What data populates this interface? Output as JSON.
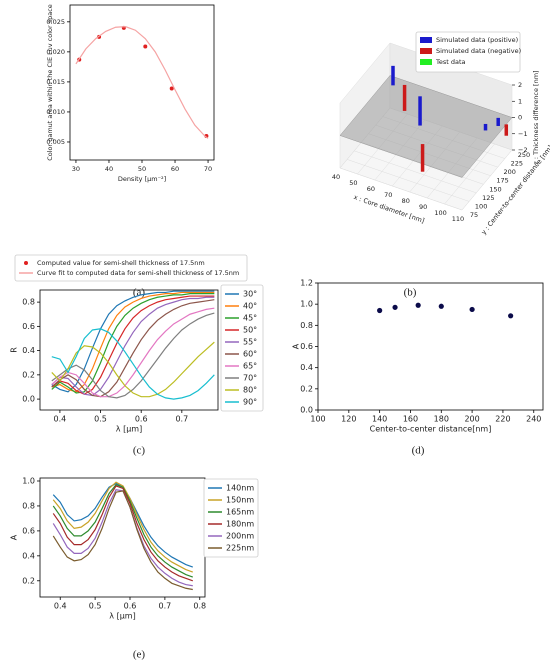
{
  "chart_data": [
    {
      "type": "scatter",
      "caption": "(a)",
      "xlabel": "Density [μm⁻²]",
      "ylabel": "Color gamut area within the CIE Luv color space",
      "xlim": [
        28.2,
        71.8
      ],
      "ylim": [
        0.002,
        0.0278
      ],
      "xticks": [
        30,
        40,
        50,
        60,
        70
      ],
      "yticks": [
        0.005,
        {
          "value": 0.01,
          "label": "0.010"
        },
        0.015,
        {
          "value": 0.02,
          "label": "0.020"
        },
        0.025
      ],
      "series": [
        {
          "name": "Computed value for semi-shell thickness of 17.5nm",
          "type": "scatter",
          "color": "#e02020",
          "x": [
            31,
            37,
            44.5,
            51,
            59,
            69.5
          ],
          "values": [
            0.0187,
            0.0225,
            0.024,
            0.0209,
            0.0139,
            0.006
          ]
        },
        {
          "name": "Curve fit to computed data for semi-shell thickness of 17.5nm",
          "type": "line",
          "color": "#f5a3a3",
          "x": [
            30,
            33,
            36,
            39,
            42,
            45,
            48,
            51,
            54,
            57,
            60,
            63,
            66,
            69,
            70
          ],
          "values": [
            0.018,
            0.0205,
            0.0222,
            0.0234,
            0.0241,
            0.0242,
            0.0236,
            0.0222,
            0.02,
            0.017,
            0.0137,
            0.0105,
            0.0078,
            0.006,
            0.0056
          ]
        }
      ]
    },
    {
      "type": "bar3d",
      "caption": "(b)",
      "xlabel": "x : Core diameter [nm]",
      "ylabel": "y : Center-to-center distance [nm]",
      "zlabel": "z : Thickness difference [nm]",
      "xlim": [
        40,
        110
      ],
      "ylim": [
        75,
        250
      ],
      "zlim": [
        -2,
        2
      ],
      "xticks": [
        40,
        50,
        60,
        70,
        80,
        90,
        100,
        110
      ],
      "yticks": [
        75,
        100,
        125,
        150,
        175,
        200,
        225,
        250
      ],
      "zticks": [
        {
          "value": -2,
          "label": "−2"
        },
        {
          "value": -1,
          "label": "−1"
        },
        0,
        1,
        2
      ],
      "series": [
        {
          "name": "Simulated data (positive)",
          "color": "#1a1acc",
          "x": [
            45,
            72,
            103,
            107
          ],
          "y": [
            230,
            160,
            200,
            220
          ],
          "values": [
            1.2,
            1.8,
            0.4,
            0.5
          ]
        },
        {
          "name": "Simulated data (negative)",
          "color": "#cc1a1a",
          "x": [
            50,
            80,
            110
          ],
          "y": [
            240,
            120,
            230
          ],
          "values": [
            -1.6,
            -1.7,
            -0.7
          ]
        },
        {
          "name": "Test data",
          "color": "#22ee22",
          "x": [],
          "y": [],
          "values": []
        }
      ]
    },
    {
      "type": "line",
      "caption": "(c)",
      "xlabel": "λ [μm]",
      "ylabel": "R",
      "xlim": [
        0.351,
        0.789
      ],
      "ylim": [
        -0.09,
        0.9
      ],
      "xticks": [
        0.4,
        0.5,
        0.6,
        0.7
      ],
      "yticks": [
        {
          "value": 0,
          "label": "0.0"
        },
        0.2,
        0.4,
        0.6,
        0.8
      ],
      "x": [
        0.38,
        0.4,
        0.42,
        0.44,
        0.46,
        0.48,
        0.5,
        0.52,
        0.54,
        0.56,
        0.58,
        0.6,
        0.62,
        0.64,
        0.66,
        0.68,
        0.7,
        0.72,
        0.74,
        0.76,
        0.78
      ],
      "series": [
        {
          "name": "30°",
          "color": "#1f77b4",
          "values": [
            0.12,
            0.08,
            0.06,
            0.12,
            0.25,
            0.42,
            0.58,
            0.7,
            0.77,
            0.81,
            0.84,
            0.86,
            0.87,
            0.88,
            0.88,
            0.89,
            0.89,
            0.89,
            0.89,
            0.89,
            0.89
          ]
        },
        {
          "name": "40°",
          "color": "#ff7f0e",
          "values": [
            0.1,
            0.12,
            0.08,
            0.06,
            0.12,
            0.25,
            0.42,
            0.58,
            0.69,
            0.76,
            0.8,
            0.83,
            0.85,
            0.86,
            0.87,
            0.87,
            0.88,
            0.88,
            0.88,
            0.88,
            0.88
          ]
        },
        {
          "name": "45°",
          "color": "#2ca02c",
          "values": [
            0.08,
            0.14,
            0.1,
            0.05,
            0.06,
            0.15,
            0.3,
            0.47,
            0.6,
            0.69,
            0.75,
            0.79,
            0.82,
            0.84,
            0.85,
            0.86,
            0.86,
            0.87,
            0.87,
            0.87,
            0.87
          ]
        },
        {
          "name": "50°",
          "color": "#d62728",
          "values": [
            0.1,
            0.15,
            0.13,
            0.07,
            0.04,
            0.08,
            0.18,
            0.32,
            0.46,
            0.58,
            0.67,
            0.73,
            0.77,
            0.8,
            0.82,
            0.83,
            0.84,
            0.85,
            0.85,
            0.85,
            0.85
          ]
        },
        {
          "name": "55°",
          "color": "#9467bd",
          "values": [
            0.12,
            0.18,
            0.17,
            0.1,
            0.04,
            0.03,
            0.08,
            0.18,
            0.31,
            0.44,
            0.55,
            0.64,
            0.7,
            0.75,
            0.78,
            0.8,
            0.82,
            0.83,
            0.83,
            0.84,
            0.84
          ]
        },
        {
          "name": "60°",
          "color": "#8c564b",
          "values": [
            0.1,
            0.16,
            0.2,
            0.16,
            0.08,
            0.03,
            0.02,
            0.06,
            0.14,
            0.26,
            0.38,
            0.49,
            0.58,
            0.65,
            0.7,
            0.74,
            0.77,
            0.79,
            0.8,
            0.81,
            0.82
          ]
        },
        {
          "name": "65°",
          "color": "#e377c2",
          "values": [
            0.12,
            0.18,
            0.22,
            0.2,
            0.13,
            0.05,
            0.02,
            0.02,
            0.05,
            0.11,
            0.2,
            0.3,
            0.4,
            0.49,
            0.56,
            0.62,
            0.66,
            0.7,
            0.72,
            0.74,
            0.75
          ]
        },
        {
          "name": "70°",
          "color": "#7f7f7f",
          "values": [
            0.15,
            0.2,
            0.25,
            0.28,
            0.24,
            0.16,
            0.07,
            0.02,
            0.01,
            0.03,
            0.08,
            0.15,
            0.24,
            0.33,
            0.42,
            0.5,
            0.57,
            0.62,
            0.66,
            0.69,
            0.71
          ]
        },
        {
          "name": "80°",
          "color": "#bcbd22",
          "values": [
            0.22,
            0.15,
            0.25,
            0.38,
            0.44,
            0.43,
            0.38,
            0.3,
            0.2,
            0.11,
            0.05,
            0.02,
            0.02,
            0.04,
            0.08,
            0.14,
            0.21,
            0.28,
            0.35,
            0.41,
            0.47
          ]
        },
        {
          "name": "90°",
          "color": "#17becf",
          "values": [
            0.35,
            0.33,
            0.22,
            0.35,
            0.5,
            0.57,
            0.58,
            0.55,
            0.48,
            0.39,
            0.29,
            0.19,
            0.1,
            0.04,
            0.01,
            0,
            0.01,
            0.03,
            0.07,
            0.13,
            0.2
          ]
        }
      ]
    },
    {
      "type": "scatter",
      "caption": "(d)",
      "xlabel": "Center-to-center distance[nm]",
      "ylabel": "A",
      "xlim": [
        100,
        246
      ],
      "ylim": [
        0,
        1.2
      ],
      "xticks": [
        100,
        120,
        140,
        160,
        180,
        200,
        220,
        240
      ],
      "yticks": [
        {
          "value": 0,
          "label": "0.0"
        },
        0.2,
        0.4,
        0.6,
        0.8,
        {
          "value": 1,
          "label": "1.0"
        },
        1.2
      ],
      "color": "#0b0b4a",
      "x": [
        140,
        150,
        165,
        180,
        200,
        225
      ],
      "values": [
        0.94,
        0.97,
        0.99,
        0.98,
        0.95,
        0.89
      ]
    },
    {
      "type": "line",
      "caption": "(e)",
      "xlabel": "λ [μm]",
      "ylabel": "A",
      "xlim": [
        0.342,
        0.815
      ],
      "ylim": [
        0.07,
        1.024
      ],
      "xticks": [
        0.4,
        0.5,
        0.6,
        0.7,
        0.8
      ],
      "yticks": [
        0.2,
        0.4,
        0.6,
        0.8,
        {
          "value": 1,
          "label": "1.0"
        }
      ],
      "x": [
        0.38,
        0.4,
        0.42,
        0.44,
        0.46,
        0.48,
        0.5,
        0.52,
        0.54,
        0.56,
        0.58,
        0.6,
        0.62,
        0.64,
        0.66,
        0.68,
        0.7,
        0.72,
        0.74,
        0.76,
        0.78
      ],
      "series": [
        {
          "name": "140nm",
          "color": "#1f77b4",
          "values": [
            0.89,
            0.83,
            0.73,
            0.68,
            0.69,
            0.72,
            0.78,
            0.87,
            0.95,
            0.98,
            0.95,
            0.86,
            0.75,
            0.64,
            0.55,
            0.48,
            0.43,
            0.39,
            0.36,
            0.33,
            0.31
          ]
        },
        {
          "name": "150nm",
          "color": "#c9a227",
          "values": [
            0.85,
            0.78,
            0.68,
            0.62,
            0.63,
            0.67,
            0.74,
            0.84,
            0.94,
            0.99,
            0.96,
            0.86,
            0.73,
            0.61,
            0.51,
            0.44,
            0.39,
            0.35,
            0.32,
            0.29,
            0.27
          ]
        },
        {
          "name": "165nm",
          "color": "#2e8b2e",
          "values": [
            0.8,
            0.72,
            0.62,
            0.56,
            0.56,
            0.6,
            0.67,
            0.78,
            0.9,
            0.97,
            0.95,
            0.84,
            0.7,
            0.57,
            0.47,
            0.4,
            0.35,
            0.31,
            0.28,
            0.25,
            0.23
          ]
        },
        {
          "name": "180nm",
          "color": "#a52a2a",
          "values": [
            0.74,
            0.66,
            0.55,
            0.49,
            0.49,
            0.53,
            0.61,
            0.73,
            0.87,
            0.96,
            0.94,
            0.82,
            0.66,
            0.53,
            0.43,
            0.36,
            0.31,
            0.27,
            0.24,
            0.22,
            0.2
          ]
        },
        {
          "name": "200nm",
          "color": "#9467bd",
          "values": [
            0.66,
            0.57,
            0.47,
            0.42,
            0.42,
            0.46,
            0.54,
            0.67,
            0.82,
            0.93,
            0.92,
            0.79,
            0.62,
            0.48,
            0.38,
            0.31,
            0.26,
            0.22,
            0.19,
            0.17,
            0.16
          ]
        },
        {
          "name": "225nm",
          "color": "#7a5c2e",
          "values": [
            0.56,
            0.47,
            0.39,
            0.36,
            0.37,
            0.41,
            0.49,
            0.62,
            0.78,
            0.91,
            0.92,
            0.79,
            0.61,
            0.46,
            0.35,
            0.27,
            0.22,
            0.18,
            0.16,
            0.14,
            0.13
          ]
        }
      ]
    }
  ]
}
